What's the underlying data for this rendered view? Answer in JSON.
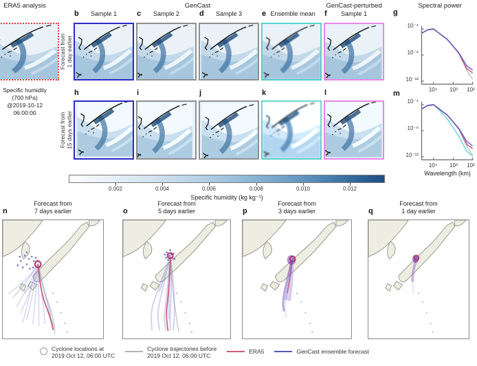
{
  "header": {
    "era5": "ERA5 analysis",
    "gencast": "GenCast",
    "gencast_perturbed": "GenCast-perturbed",
    "spectral_power": "Spectral power"
  },
  "row1": {
    "side_line1": "Forecast from",
    "side_line2": "1 day earlier",
    "panels": [
      {
        "letter": "b",
        "title": "Sample 1",
        "border": "#2a2ac8"
      },
      {
        "letter": "c",
        "title": "Sample 2",
        "border": "#8f8f8f"
      },
      {
        "letter": "d",
        "title": "Sample 3",
        "border": "#8f8f8f"
      },
      {
        "letter": "e",
        "title": "Ensemble mean",
        "border": "#45cfc5"
      },
      {
        "letter": "f",
        "title": "Sample 1",
        "border": "#e689e6"
      }
    ],
    "spectral_letter": "g"
  },
  "row2": {
    "side_line1": "Forecast from",
    "side_line2": "15 days earlier",
    "letters": [
      "h",
      "i",
      "j",
      "k",
      "l"
    ],
    "borders": [
      "#2a2ac8",
      "#8f8f8f",
      "#8f8f8f",
      "#45cfc5",
      "#e689e6"
    ],
    "spectral_letter": "m"
  },
  "era5_caption": {
    "line1": "Specific humidity",
    "line2": "(700 hPa)",
    "line3": "@2019-10-12",
    "line4": "06:00:00"
  },
  "colorbar": {
    "label": "Specific humidity (kg kg⁻¹)",
    "ticks": [
      "0.002",
      "0.004",
      "0.006",
      "0.008",
      "0.010",
      "0.012"
    ],
    "min": 0,
    "max": 0.0135
  },
  "spectral_axes": {
    "yticks": [
      "10⁻⁴",
      "10⁻⁸",
      "10⁻¹²"
    ],
    "xticks": [
      "10⁴",
      "10³",
      "10²"
    ],
    "xlabel": "Wavelength (km)"
  },
  "bottom_panels": [
    {
      "letter": "n",
      "title_line1": "Forecast from",
      "title_line2": "7 days earlier"
    },
    {
      "letter": "o",
      "title_line1": "Forecast from",
      "title_line2": "5 days earlier"
    },
    {
      "letter": "p",
      "title_line1": "Forecast from",
      "title_line2": "3 days earlier"
    },
    {
      "letter": "q",
      "title_line1": "Forecast from",
      "title_line2": "1 day earlier"
    }
  ],
  "legend": {
    "items": [
      {
        "line1": "Cyclone locations at",
        "line2": "2019 Oct 12, 06:00 UTC",
        "color": "#9a9a9a"
      },
      {
        "line1": "Cyclone trajectories before",
        "line2": "2019 Oct 12, 06:00 UTC",
        "color": "#b4b4b4"
      },
      {
        "line1": "ERA5",
        "line2": "",
        "color": "#cf5a74"
      },
      {
        "line1": "GenCast ensemble forecast",
        "line2": "",
        "color": "#5456bb"
      }
    ]
  },
  "chart_data": [
    {
      "type": "line",
      "panel": "g",
      "title": "Spectral power",
      "xlabel": "Wavelength (km)",
      "x_scale": "log10, reversed (large wavelengths at left)",
      "y_scale": "log10",
      "x_wavelength_km": [
        40000,
        20000,
        10000,
        5000,
        2000,
        1000,
        500,
        200,
        100
      ],
      "ylim_log10": [
        -12.5,
        -3.5
      ],
      "yticks": [
        "10⁻⁴",
        "10⁻⁸",
        "10⁻¹²"
      ],
      "xticks": [
        "10⁴",
        "10³",
        "10²"
      ],
      "series": [
        {
          "name": "ERA5 analysis (grey)",
          "color": "#b4b4b4",
          "log10_power": [
            -4.7,
            -4.15,
            -4.0,
            -4.75,
            -5.7,
            -6.8,
            -8.05,
            -10.8,
            -12.2
          ]
        },
        {
          "name": "GenCast-perturbed sample (pink)",
          "color": "#dd9ade",
          "log10_power": [
            -4.65,
            -4.1,
            -3.95,
            -4.7,
            -5.65,
            -6.75,
            -7.95,
            -10.3,
            -11.3
          ]
        },
        {
          "name": "ERA5 forecast reference (red)",
          "color": "#c0506c",
          "log10_power": [
            -4.68,
            -4.13,
            -4.0,
            -4.73,
            -5.7,
            -6.8,
            -8.0,
            -10.5,
            -11.1
          ]
        },
        {
          "name": "GenCast sample (blue)",
          "color": "#4646c6",
          "log10_power": [
            -4.7,
            -4.12,
            -3.98,
            -4.72,
            -5.68,
            -6.78,
            -7.9,
            -10.0,
            -10.7
          ]
        }
      ]
    },
    {
      "type": "line",
      "panel": "m",
      "title": "Spectral power",
      "xlabel": "Wavelength (km)",
      "x_scale": "log10, reversed (large wavelengths at left)",
      "y_scale": "log10",
      "x_wavelength_km": [
        40000,
        20000,
        10000,
        5000,
        2000,
        1000,
        500,
        200,
        100
      ],
      "ylim_log10": [
        -12.5,
        -3.5
      ],
      "yticks": [
        "10⁻⁴",
        "10⁻⁸",
        "10⁻¹²"
      ],
      "xticks": [
        "10⁴",
        "10³",
        "10²"
      ],
      "series": [
        {
          "name": "ERA5 analysis (grey)",
          "color": "#b4b4b4",
          "log10_power": [
            -4.7,
            -4.15,
            -4.0,
            -4.75,
            -5.7,
            -6.8,
            -8.05,
            -10.8,
            -12.2
          ]
        },
        {
          "name": "Ensemble mean (cyan)",
          "color": "#3cc8c8",
          "log10_power": [
            -4.7,
            -4.15,
            -4.02,
            -4.9,
            -6.3,
            -7.7,
            -9.2,
            -11.6,
            -12.4
          ]
        },
        {
          "name": "GenCast-perturbed sample (pink)",
          "color": "#dd9ade",
          "log10_power": [
            -4.65,
            -4.1,
            -3.95,
            -4.7,
            -5.65,
            -6.75,
            -7.95,
            -10.3,
            -11.3
          ]
        },
        {
          "name": "ERA5 forecast reference (red)",
          "color": "#c0506c",
          "log10_power": [
            -4.68,
            -4.13,
            -4.0,
            -4.73,
            -5.7,
            -6.8,
            -8.0,
            -10.5,
            -11.1
          ]
        },
        {
          "name": "GenCast sample (blue)",
          "color": "#4646c6",
          "log10_power": [
            -4.7,
            -4.12,
            -3.98,
            -4.72,
            -5.68,
            -6.78,
            -7.9,
            -10.0,
            -10.7
          ]
        }
      ]
    }
  ]
}
